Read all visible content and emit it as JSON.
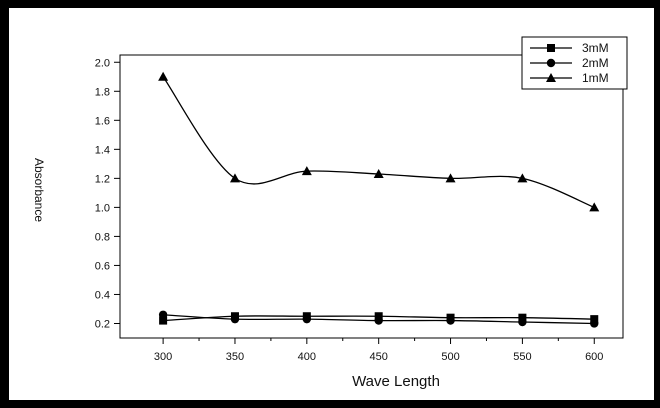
{
  "chart_data": {
    "type": "line",
    "title": "",
    "xlabel": "Wave Length",
    "ylabel": "Absorbance",
    "x": [
      300,
      350,
      400,
      450,
      500,
      550,
      600
    ],
    "xlim": [
      270,
      620
    ],
    "ylim": [
      0.1,
      2.05
    ],
    "xticks": [
      "300",
      "350",
      "400",
      "450",
      "500",
      "550",
      "600"
    ],
    "yticks": [
      "0.2",
      "0.4",
      "0.6",
      "0.8",
      "1.0",
      "1.2",
      "1.4",
      "1.6",
      "1.8",
      "2.0"
    ],
    "grid": false,
    "legend_position": "top-right",
    "series": [
      {
        "name": "3mM",
        "marker": "square",
        "values": [
          0.22,
          0.25,
          0.25,
          0.25,
          0.24,
          0.24,
          0.23
        ]
      },
      {
        "name": "2mM",
        "marker": "circle",
        "values": [
          0.26,
          0.23,
          0.23,
          0.22,
          0.22,
          0.21,
          0.2
        ]
      },
      {
        "name": "1mM",
        "marker": "triangle",
        "values": [
          1.9,
          1.2,
          1.25,
          1.23,
          1.2,
          1.2,
          1.0
        ]
      }
    ]
  }
}
